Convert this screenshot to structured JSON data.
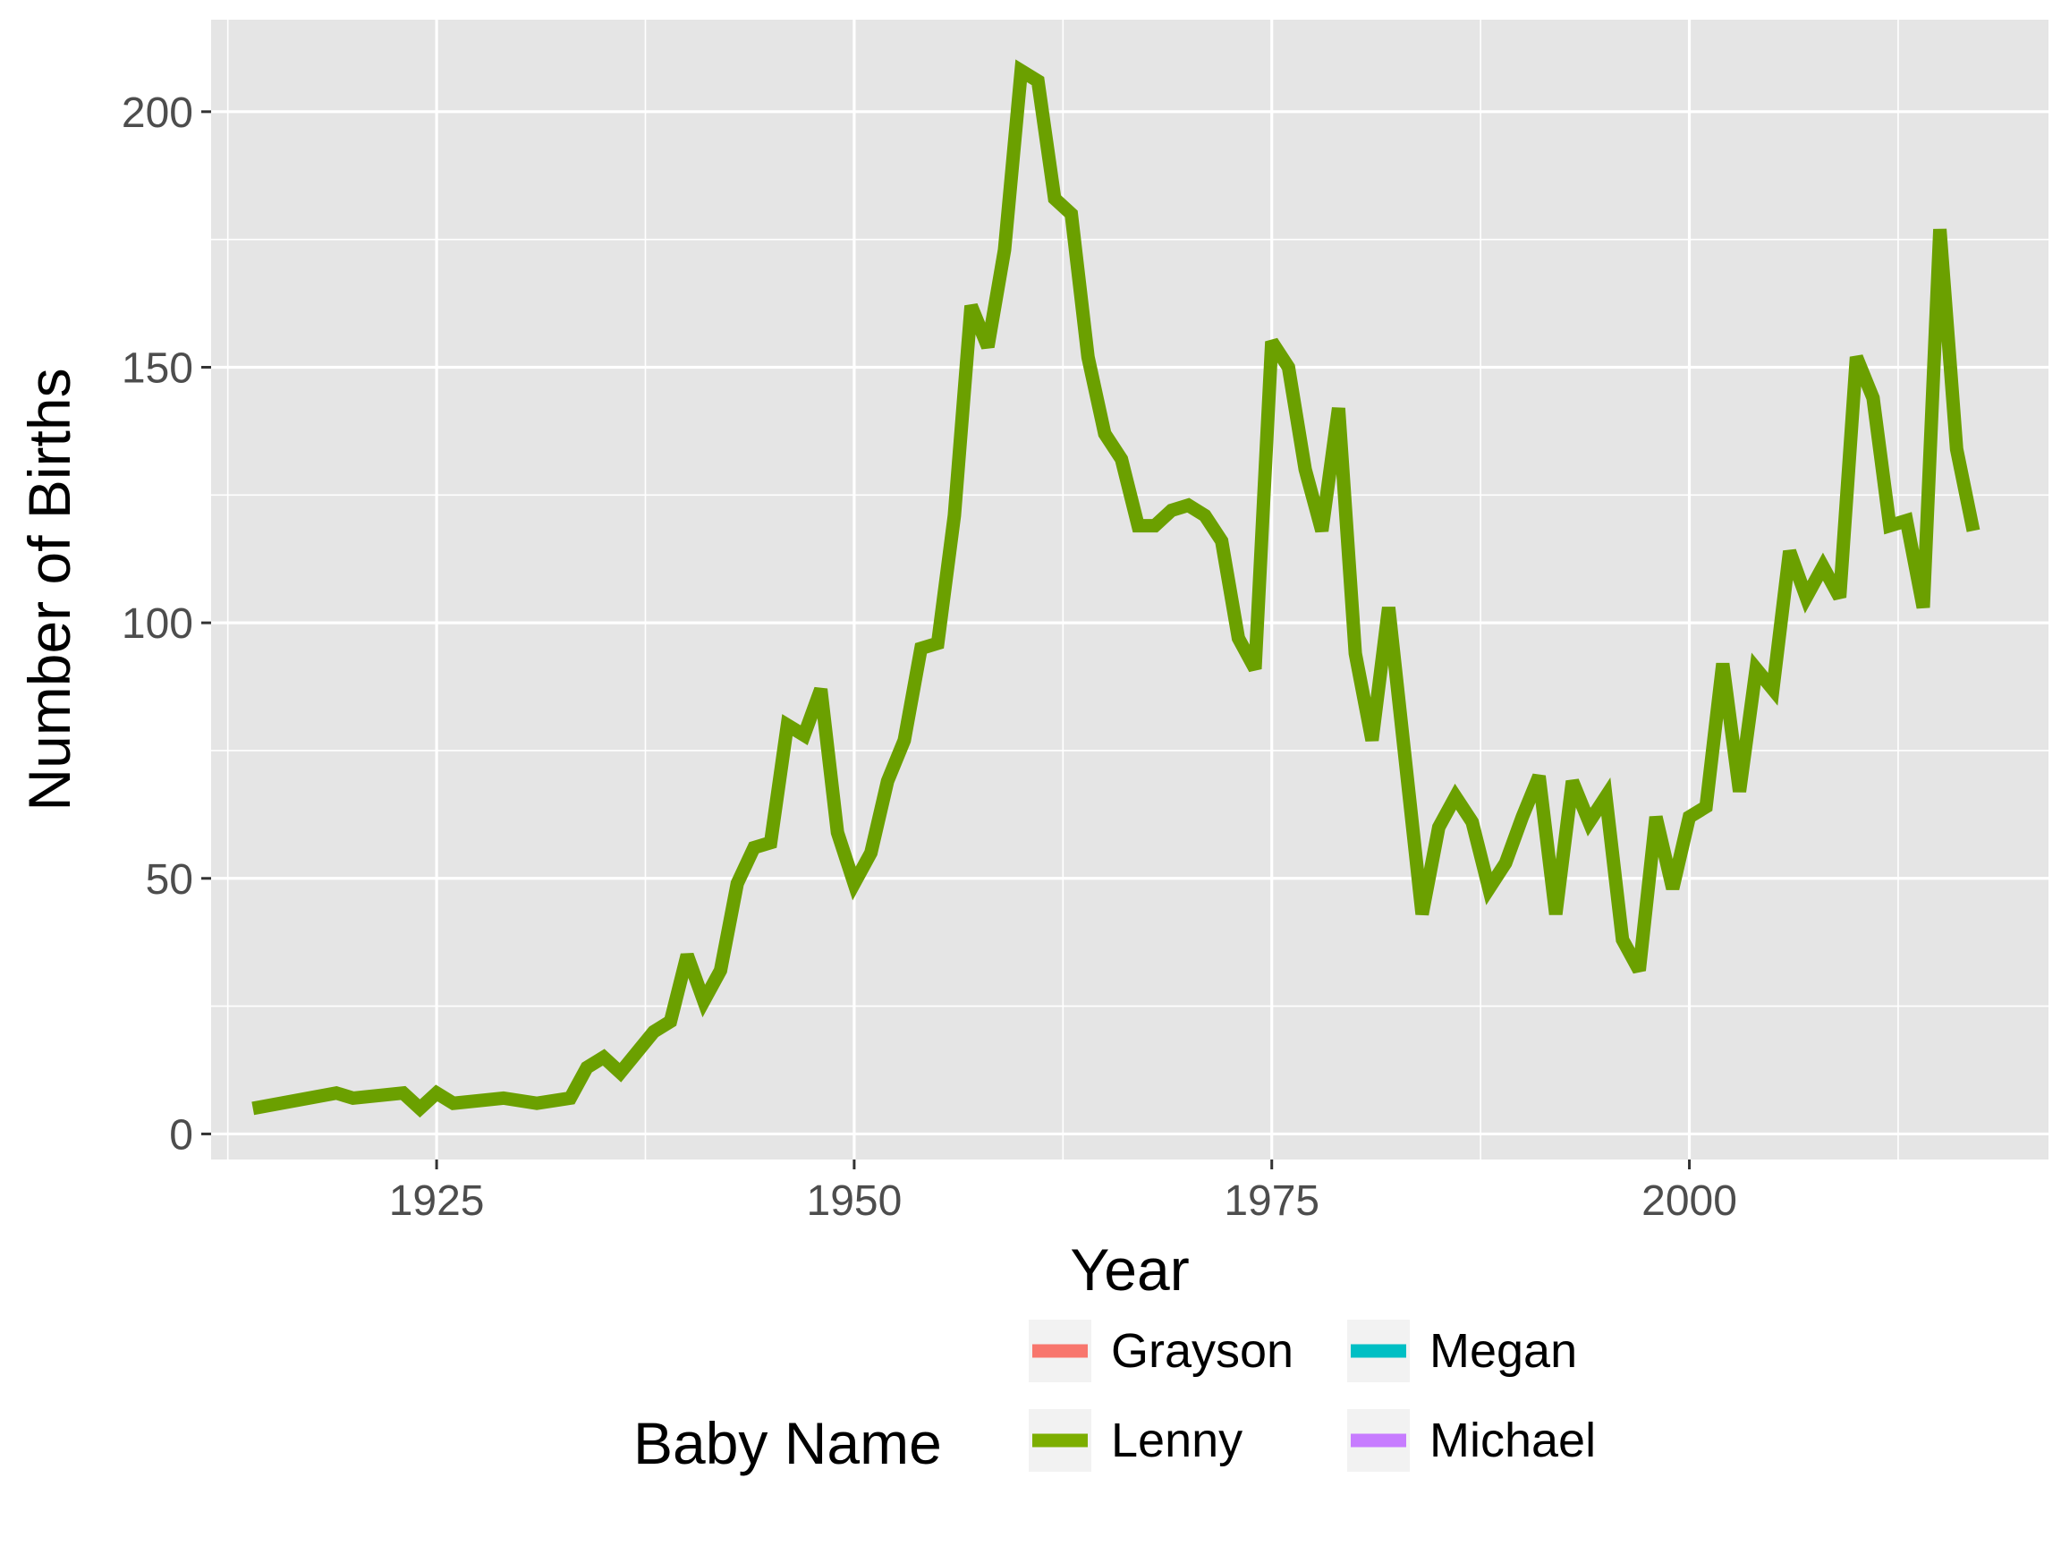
{
  "chart_data": {
    "type": "line",
    "xlabel": "Year",
    "ylabel": "Number of Births",
    "xlim": [
      1911.5,
      2021.5
    ],
    "ylim": [
      -5,
      218
    ],
    "xticks": [
      1925,
      1950,
      1975,
      2000
    ],
    "yticks": [
      0,
      50,
      100,
      150,
      200
    ],
    "grid": true,
    "legend": {
      "title": "Baby Name",
      "position": "bottom",
      "entries": [
        {
          "name": "Grayson",
          "color": "#F8766D"
        },
        {
          "name": "Lenny",
          "color": "#7CAE00"
        },
        {
          "name": "Megan",
          "color": "#00BFC4"
        },
        {
          "name": "Michael",
          "color": "#C77CFF"
        }
      ]
    },
    "series": [
      {
        "name": "Lenny",
        "color": "#6BA000",
        "x": [
          1914,
          1919,
          1920,
          1923,
          1924,
          1925,
          1926,
          1929,
          1931,
          1933,
          1934,
          1935,
          1936,
          1938,
          1939,
          1940,
          1941,
          1942,
          1943,
          1944,
          1945,
          1946,
          1947,
          1948,
          1949,
          1950,
          1951,
          1952,
          1953,
          1954,
          1955,
          1956,
          1957,
          1958,
          1959,
          1960,
          1961,
          1962,
          1963,
          1964,
          1965,
          1966,
          1967,
          1968,
          1969,
          1970,
          1971,
          1972,
          1973,
          1974,
          1975,
          1976,
          1977,
          1978,
          1979,
          1980,
          1981,
          1982,
          1983,
          1984,
          1985,
          1986,
          1987,
          1988,
          1989,
          1990,
          1991,
          1992,
          1993,
          1994,
          1995,
          1996,
          1997,
          1998,
          1999,
          2000,
          2001,
          2002,
          2003,
          2004,
          2005,
          2006,
          2007,
          2008,
          2009,
          2010,
          2011,
          2012,
          2013,
          2014,
          2015,
          2016,
          2017
        ],
        "y": [
          5,
          8,
          7,
          8,
          5,
          8,
          6,
          7,
          6,
          7,
          13,
          15,
          12,
          20,
          22,
          35,
          26,
          32,
          49,
          56,
          57,
          80,
          78,
          87,
          59,
          49,
          55,
          69,
          77,
          95,
          96,
          121,
          162,
          154,
          173,
          208,
          206,
          183,
          180,
          152,
          137,
          132,
          119,
          119,
          122,
          123,
          121,
          116,
          97,
          91,
          155,
          150,
          130,
          118,
          142,
          94,
          77,
          103,
          73,
          43,
          60,
          66,
          61,
          48,
          53,
          62,
          70,
          43,
          69,
          61,
          66,
          38,
          32,
          62,
          48,
          62,
          64,
          92,
          67,
          91,
          87,
          114,
          105,
          111,
          105,
          152,
          144,
          119,
          120,
          103,
          177,
          134,
          118
        ]
      }
    ]
  }
}
